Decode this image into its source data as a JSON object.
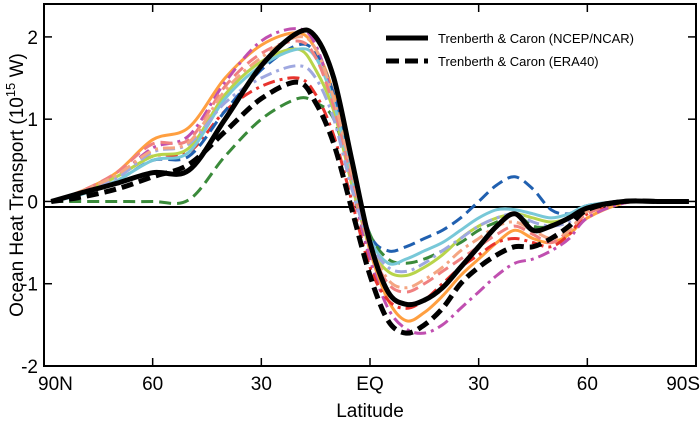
{
  "chart_data": {
    "type": "line",
    "xlabel": "Latitude",
    "ylabel": "Ocean Heat Transport (10",
    "ylabel_exponent": "15",
    "ylabel_unit": " W)",
    "xlim": [
      90,
      -90
    ],
    "ylim": [
      -2,
      2.4
    ],
    "x_ticks": [
      {
        "value": 90,
        "label": "90N"
      },
      {
        "value": 60,
        "label": "60"
      },
      {
        "value": 30,
        "label": "30"
      },
      {
        "value": 0,
        "label": "EQ"
      },
      {
        "value": -30,
        "label": "30"
      },
      {
        "value": -60,
        "label": "60"
      },
      {
        "value": -90,
        "label": "90S"
      }
    ],
    "y_ticks": [
      {
        "value": 2,
        "label": "2"
      },
      {
        "value": 1,
        "label": "1"
      },
      {
        "value": 0,
        "label": "0"
      },
      {
        "value": -1,
        "label": "-1"
      },
      {
        "value": -2,
        "label": "-2"
      }
    ],
    "zero_line": true,
    "legend": {
      "position": "top-right",
      "entries": [
        {
          "label": "Trenberth & Caron (NCEP/NCAR)",
          "style": "solid",
          "color": "#000000"
        },
        {
          "label": "Trenberth & Caron (ERA40)",
          "style": "dashed",
          "color": "#000000"
        }
      ]
    },
    "x": [
      88,
      80,
      70,
      60,
      50,
      40,
      30,
      20,
      15,
      10,
      5,
      0,
      -5,
      -10,
      -15,
      -20,
      -25,
      -30,
      -35,
      -40,
      -45,
      -50,
      -55,
      -60,
      -70,
      -80,
      -88
    ],
    "series": [
      {
        "name": "Trenberth & Caron (NCEP/NCAR)",
        "style": "solid",
        "color": "#000000",
        "width": 5,
        "in_legend": true,
        "values": [
          0,
          0.1,
          0.22,
          0.35,
          0.38,
          1.0,
          1.65,
          2.05,
          2.0,
          1.5,
          0.5,
          -0.5,
          -1.1,
          -1.25,
          -1.2,
          -1.05,
          -0.8,
          -0.55,
          -0.3,
          -0.15,
          -0.35,
          -0.3,
          -0.2,
          -0.08,
          0,
          0,
          0
        ]
      },
      {
        "name": "Trenberth & Caron (ERA40)",
        "style": "dashed",
        "color": "#000000",
        "width": 5,
        "in_legend": true,
        "values": [
          0,
          0.05,
          0.15,
          0.3,
          0.45,
          0.85,
          1.25,
          1.45,
          1.2,
          0.7,
          -0.1,
          -0.9,
          -1.45,
          -1.6,
          -1.5,
          -1.3,
          -1.0,
          -0.8,
          -0.65,
          -0.55,
          -0.55,
          -0.45,
          -0.3,
          -0.1,
          0,
          0,
          0
        ]
      },
      {
        "name": "model-orange",
        "style": "solid",
        "color": "#ff9f40",
        "width": 3,
        "in_legend": false,
        "values": [
          0,
          0.12,
          0.35,
          0.75,
          0.9,
          1.5,
          1.9,
          2.05,
          1.85,
          1.3,
          0.3,
          -0.6,
          -1.2,
          -1.45,
          -1.35,
          -1.15,
          -0.9,
          -0.7,
          -0.5,
          -0.35,
          -0.45,
          -0.5,
          -0.4,
          -0.2,
          -0.02,
          0,
          0
        ]
      },
      {
        "name": "model-magenta",
        "style": "dashdot",
        "color": "#c04fb0",
        "width": 3,
        "in_legend": false,
        "values": [
          0,
          0.1,
          0.3,
          0.65,
          0.8,
          1.45,
          1.95,
          2.1,
          1.9,
          1.2,
          0.2,
          -0.7,
          -1.3,
          -1.55,
          -1.6,
          -1.5,
          -1.3,
          -1.1,
          -0.9,
          -0.75,
          -0.7,
          -0.6,
          -0.45,
          -0.2,
          -0.02,
          0,
          0
        ]
      },
      {
        "name": "model-red",
        "style": "dashdot",
        "color": "#e8332d",
        "width": 3,
        "in_legend": false,
        "values": [
          0,
          0.1,
          0.3,
          0.55,
          0.6,
          1.1,
          1.4,
          1.5,
          1.3,
          0.8,
          0.0,
          -0.8,
          -1.2,
          -1.3,
          -1.2,
          -1.0,
          -0.8,
          -0.65,
          -0.5,
          -0.45,
          -0.5,
          -0.55,
          -0.4,
          -0.15,
          0,
          0,
          0
        ]
      },
      {
        "name": "model-blue",
        "style": "dashed",
        "color": "#2060b0",
        "width": 3,
        "in_legend": false,
        "values": [
          0,
          0.1,
          0.25,
          0.5,
          0.55,
          1.1,
          1.6,
          1.9,
          1.8,
          1.3,
          0.4,
          -0.4,
          -0.6,
          -0.55,
          -0.45,
          -0.35,
          -0.2,
          0.0,
          0.2,
          0.3,
          0.15,
          -0.1,
          -0.15,
          -0.05,
          0,
          0,
          0
        ]
      },
      {
        "name": "model-green",
        "style": "dashed",
        "color": "#3a8a3a",
        "width": 3,
        "in_legend": false,
        "values": [
          0,
          0.0,
          0.0,
          0.0,
          0.02,
          0.55,
          1.0,
          1.25,
          1.2,
          1.0,
          0.3,
          -0.4,
          -0.7,
          -0.75,
          -0.7,
          -0.6,
          -0.5,
          -0.35,
          -0.25,
          -0.15,
          -0.3,
          -0.3,
          -0.2,
          -0.1,
          0,
          0,
          0
        ]
      },
      {
        "name": "model-lime",
        "style": "solid",
        "color": "#b8d44a",
        "width": 3,
        "in_legend": false,
        "values": [
          0,
          0.1,
          0.3,
          0.55,
          0.65,
          1.3,
          1.7,
          1.85,
          1.6,
          1.1,
          0.2,
          -0.55,
          -0.85,
          -0.9,
          -0.8,
          -0.65,
          -0.45,
          -0.3,
          -0.2,
          -0.15,
          -0.2,
          -0.25,
          -0.2,
          -0.08,
          0,
          0,
          0
        ]
      },
      {
        "name": "model-cyan",
        "style": "solid",
        "color": "#78c8d8",
        "width": 3,
        "in_legend": false,
        "values": [
          0,
          0.08,
          0.25,
          0.5,
          0.6,
          1.25,
          1.65,
          1.85,
          1.75,
          1.2,
          0.3,
          -0.45,
          -0.75,
          -0.7,
          -0.6,
          -0.5,
          -0.35,
          -0.2,
          -0.1,
          -0.1,
          -0.15,
          -0.2,
          -0.15,
          -0.05,
          0,
          0,
          0
        ]
      },
      {
        "name": "model-pink",
        "style": "dashed",
        "color": "#f08080",
        "width": 3,
        "in_legend": false,
        "values": [
          0,
          0.12,
          0.35,
          0.7,
          0.75,
          1.4,
          1.8,
          1.95,
          1.75,
          1.15,
          0.25,
          -0.55,
          -1.0,
          -1.1,
          -1.0,
          -0.85,
          -0.7,
          -0.55,
          -0.4,
          -0.3,
          -0.4,
          -0.5,
          -0.35,
          -0.15,
          0,
          0,
          0
        ]
      },
      {
        "name": "model-lavender",
        "style": "dashdot",
        "color": "#9fa8e0",
        "width": 3,
        "in_legend": false,
        "values": [
          0,
          0.1,
          0.28,
          0.6,
          0.7,
          1.2,
          1.5,
          1.65,
          1.5,
          1.0,
          0.15,
          -0.5,
          -0.8,
          -0.85,
          -0.75,
          -0.6,
          -0.45,
          -0.3,
          -0.2,
          -0.15,
          -0.25,
          -0.3,
          -0.25,
          -0.1,
          0,
          0,
          0
        ]
      },
      {
        "name": "model-salmon",
        "style": "dashdot",
        "color": "#f4a582",
        "width": 3,
        "in_legend": false,
        "values": [
          0,
          0.12,
          0.32,
          0.62,
          0.72,
          1.35,
          1.75,
          2.0,
          1.85,
          1.25,
          0.35,
          -0.5,
          -0.95,
          -1.05,
          -0.95,
          -0.8,
          -0.6,
          -0.45,
          -0.3,
          -0.25,
          -0.35,
          -0.45,
          -0.35,
          -0.12,
          0,
          0,
          0
        ]
      }
    ]
  }
}
